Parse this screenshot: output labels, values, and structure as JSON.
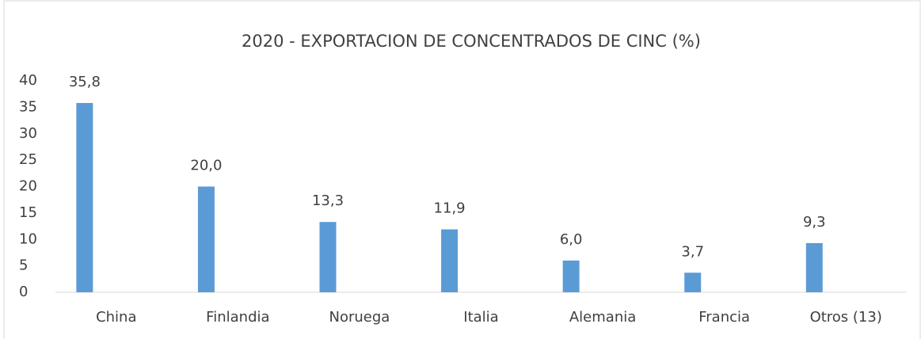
{
  "chart_data": {
    "type": "bar",
    "title": "2020 - EXPORTACION DE CONCENTRADOS DE CINC (%)",
    "categories": [
      "China",
      "Finlandia",
      "Noruega",
      "Italia",
      "Alemania",
      "Francia",
      "Otros (13)"
    ],
    "values": [
      35.8,
      20.0,
      13.3,
      11.9,
      6.0,
      3.7,
      9.3
    ],
    "value_labels": [
      "35,8",
      "20,0",
      "13,3",
      "11,9",
      "6,0",
      "3,7",
      "9,3"
    ],
    "color": "#5b9bd5",
    "ylim": [
      0,
      40
    ],
    "yticks": [
      0,
      5,
      10,
      15,
      20,
      25,
      30,
      35,
      40
    ],
    "grid": false
  }
}
